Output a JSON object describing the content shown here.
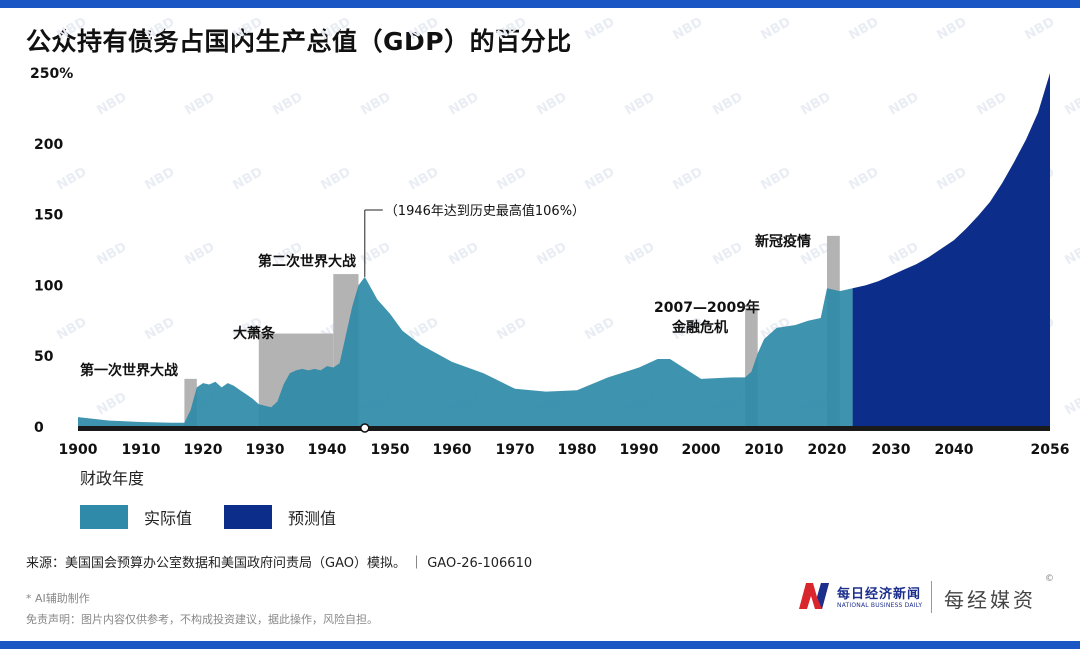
{
  "title": "公众持有债务占国内生产总值（GDP）的百分比",
  "watermark": "NBD",
  "chart_data": {
    "type": "area",
    "x_unit": "财政年度",
    "x_ticks": [
      "1900",
      "1910",
      "1920",
      "1930",
      "1940",
      "1950",
      "1960",
      "1970",
      "1980",
      "1990",
      "2000",
      "2010",
      "2020",
      "2030",
      "2040",
      "2056"
    ],
    "y_ticks": [
      "0",
      "50",
      "100",
      "150",
      "200",
      "250%"
    ],
    "ylim": [
      0,
      250
    ],
    "xlim": [
      1900,
      2056
    ],
    "colors": {
      "actual": "#2e8aa8",
      "projected": "#0c2e8a",
      "recession": "#b3b3b3",
      "axis": "#1a1a1a"
    },
    "series": [
      {
        "name": "实际值",
        "x": [
          1900,
          1905,
          1910,
          1915,
          1917,
          1918,
          1919,
          1920,
          1921,
          1922,
          1923,
          1924,
          1925,
          1926,
          1927,
          1928,
          1929,
          1930,
          1931,
          1932,
          1933,
          1934,
          1935,
          1936,
          1937,
          1938,
          1939,
          1940,
          1941,
          1942,
          1943,
          1944,
          1945,
          1946,
          1947,
          1948,
          1950,
          1952,
          1955,
          1960,
          1965,
          1970,
          1975,
          1980,
          1985,
          1990,
          1993,
          1995,
          2000,
          2005,
          2007,
          2008,
          2009,
          2010,
          2012,
          2015,
          2017,
          2019,
          2020,
          2022,
          2024
        ],
        "values": [
          7,
          4.5,
          3.5,
          3,
          3,
          12,
          28,
          31,
          30,
          32,
          28,
          31,
          29,
          26,
          23,
          20,
          16,
          15,
          14,
          18,
          30,
          38,
          40,
          41,
          40,
          41,
          40,
          43,
          42,
          45,
          65,
          85,
          100,
          106,
          98,
          90,
          80,
          68,
          58,
          46,
          38,
          27,
          25,
          26,
          35,
          42,
          48,
          48,
          34,
          35,
          35,
          39,
          52,
          62,
          70,
          72,
          75,
          77,
          98,
          96,
          98
        ]
      },
      {
        "name": "预测值",
        "x": [
          2024,
          2026,
          2028,
          2030,
          2032,
          2034,
          2036,
          2038,
          2040,
          2042,
          2044,
          2046,
          2048,
          2050,
          2052,
          2054,
          2056
        ],
        "values": [
          98,
          100,
          103,
          107,
          111,
          115,
          120,
          126,
          132,
          140,
          149,
          159,
          172,
          187,
          203,
          222,
          250
        ]
      }
    ],
    "shaded_periods": [
      {
        "label": "第一次世界大战",
        "x0": 1917,
        "x1": 1919,
        "top": 34
      },
      {
        "label": "大萧条",
        "x0": 1929,
        "x1": 1941,
        "top": 66
      },
      {
        "label": "第二次世界大战",
        "x0": 1941,
        "x1": 1945,
        "top": 108
      },
      {
        "label": "2007—2009年\n金融危机",
        "x0": 2007,
        "x1": 2009,
        "top": 84
      },
      {
        "label": "新冠疫情",
        "x0": 2020,
        "x1": 2022,
        "top": 135
      }
    ],
    "annotation": {
      "label": "（1946年达到历史最高值106%）",
      "x": 1946,
      "value": 106
    }
  },
  "legend": {
    "actual": "实际值",
    "projected": "预测值"
  },
  "source": "来源：美国国会预算办公室数据和美国政府问责局（GAO）模拟。 ｜ GAO-26-106610",
  "ai_note": "* AI辅助制作",
  "disclaimer": "免责声明：图片内容仅供参考，不构成投资建议，据此操作，风险自担。",
  "brand": {
    "cn": "每日经济新闻",
    "en": "NATIONAL BUSINESS DAILY",
    "second": "每经媒资",
    "reg": "©"
  }
}
